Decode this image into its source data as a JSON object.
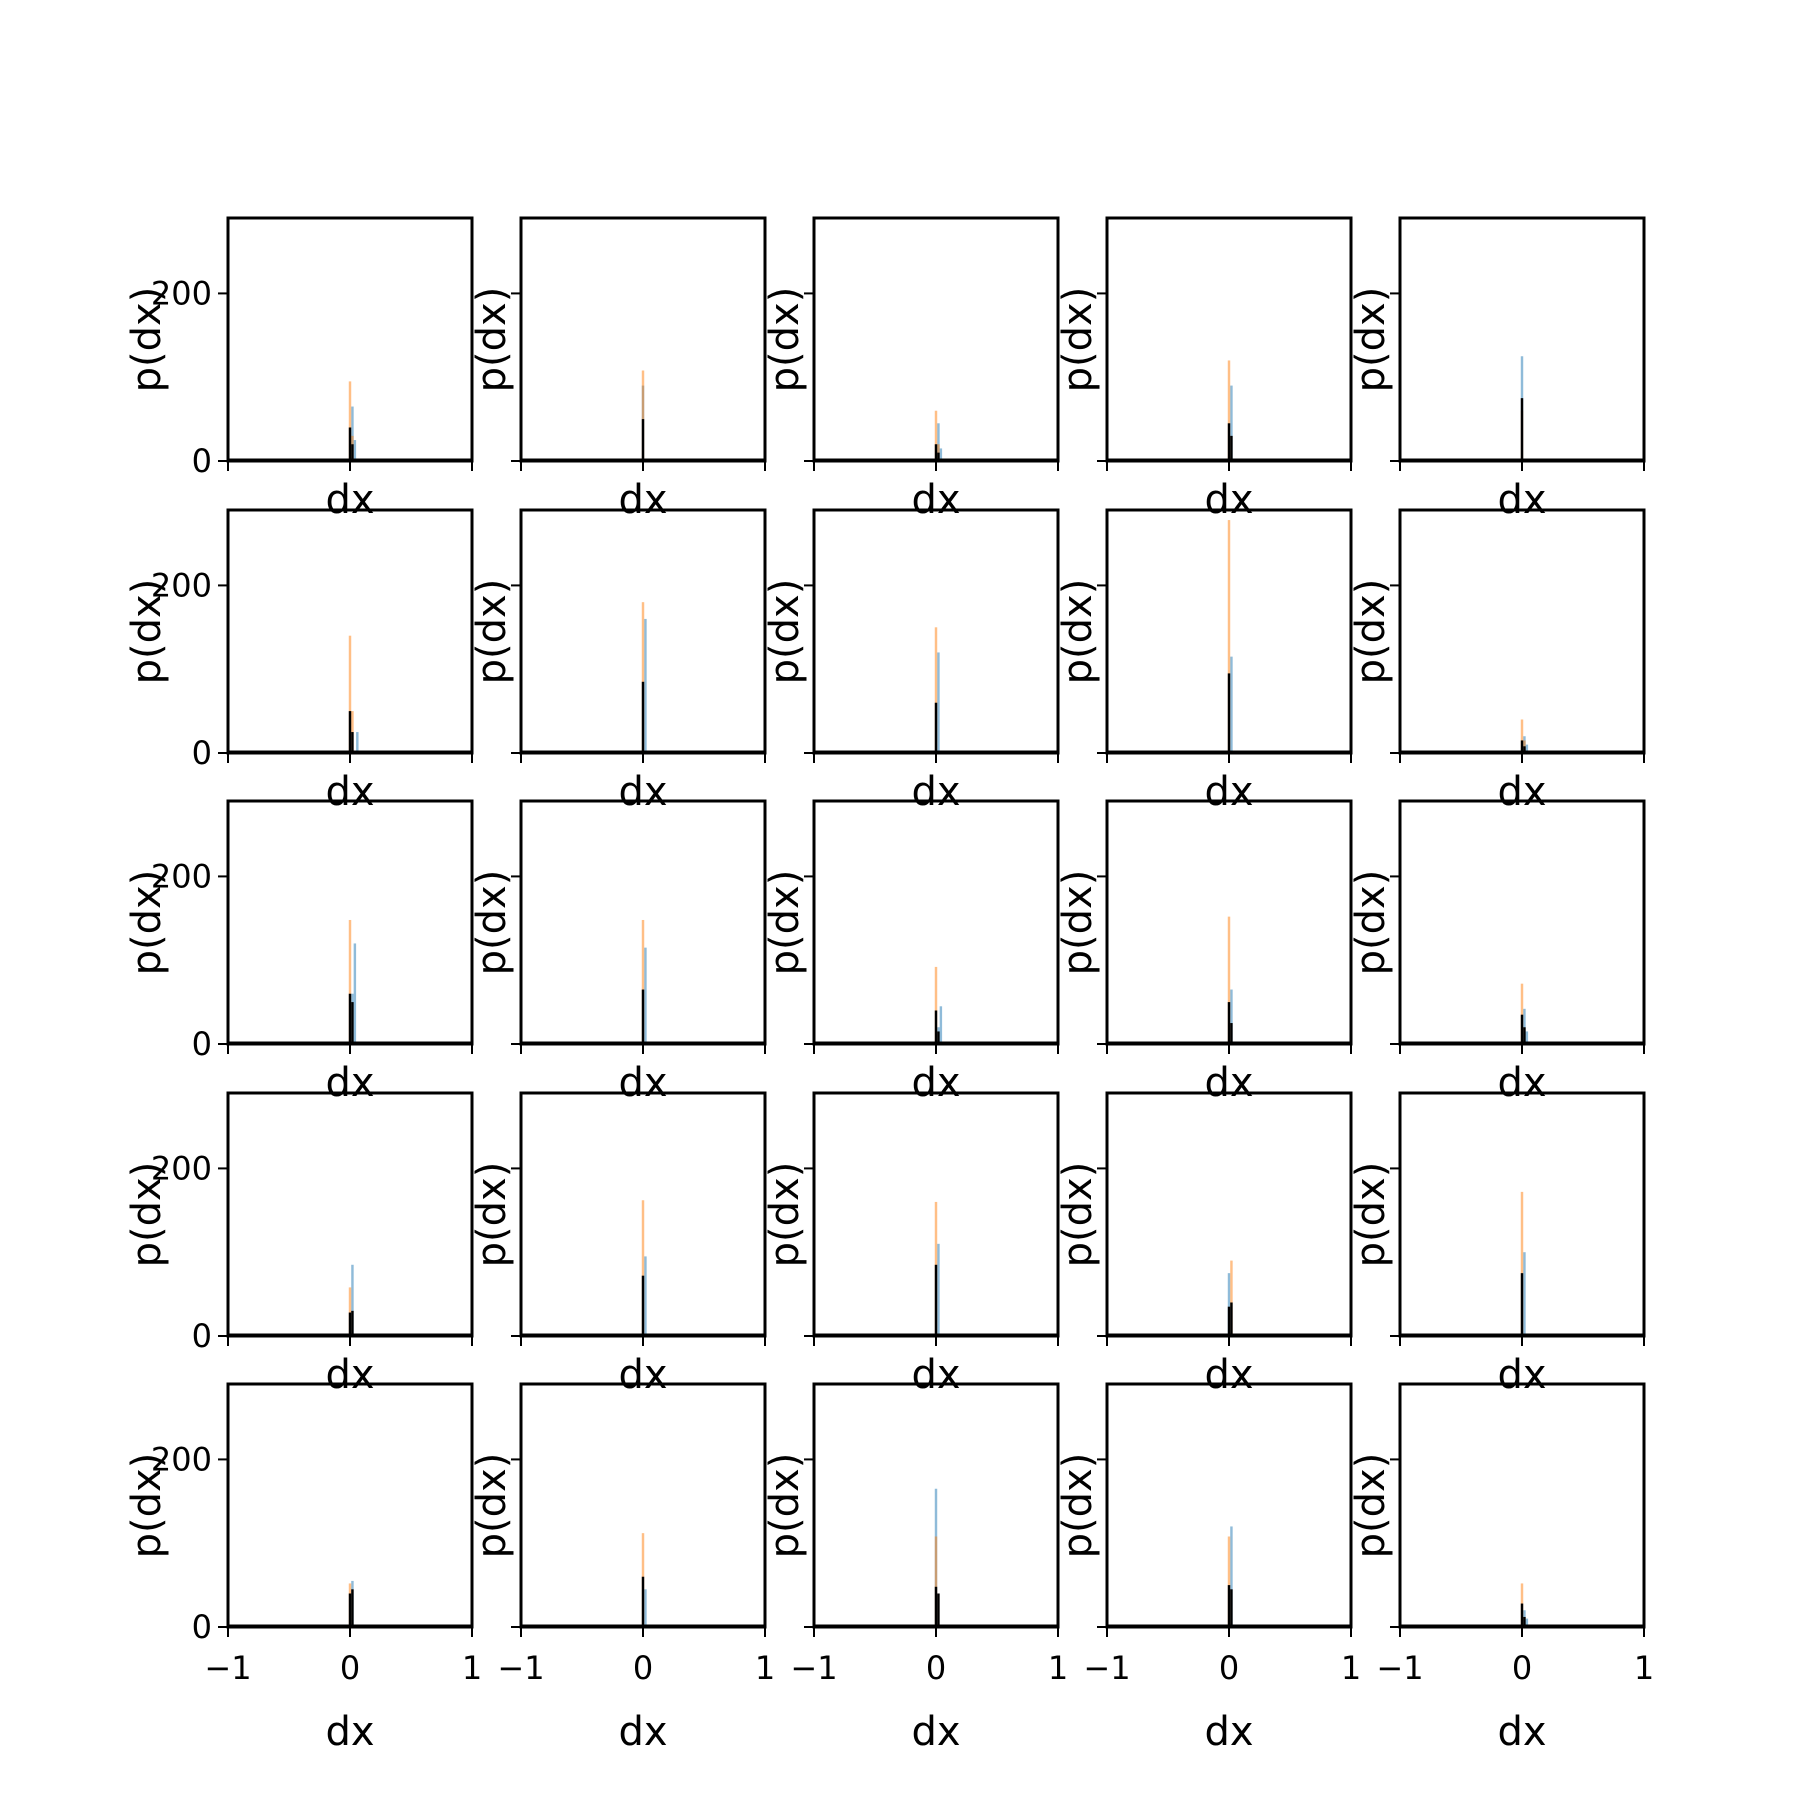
{
  "figure": {
    "background": "#ffffff"
  },
  "colors": {
    "series_blue": "#1f77b4",
    "series_orange": "#ff7f0e",
    "series_black": "#000000",
    "axes": "#000000"
  },
  "chart_data": {
    "type": "histogram-grid",
    "rows": 5,
    "cols": 5,
    "xlabel": "dx",
    "ylabel": "p(dx)",
    "xlim": [
      -1,
      1
    ],
    "ylim": [
      0,
      290
    ],
    "x_ticks": [
      -1,
      0,
      1
    ],
    "x_tick_labels": [
      "−1",
      "0",
      "1"
    ],
    "y_ticks": [
      0,
      200
    ],
    "y_tick_labels": [
      "0",
      "200"
    ],
    "grid": false,
    "bin_width": 0.02,
    "panels": [
      {
        "blue": [
          [
            0.02,
            65
          ],
          [
            0.04,
            25
          ]
        ],
        "orange": [
          [
            0.0,
            95
          ],
          [
            0.02,
            30
          ]
        ],
        "black": [
          [
            0.0,
            40
          ],
          [
            0.02,
            20
          ]
        ]
      },
      {
        "blue": [
          [
            0.0,
            90
          ]
        ],
        "orange": [
          [
            0.0,
            108
          ]
        ],
        "black": [
          [
            0.0,
            50
          ]
        ]
      },
      {
        "blue": [
          [
            0.02,
            45
          ],
          [
            0.04,
            15
          ]
        ],
        "orange": [
          [
            0.0,
            60
          ],
          [
            0.02,
            20
          ]
        ],
        "black": [
          [
            0.0,
            20
          ],
          [
            0.02,
            10
          ]
        ]
      },
      {
        "blue": [
          [
            0.02,
            90
          ]
        ],
        "orange": [
          [
            0.0,
            120
          ]
        ],
        "black": [
          [
            0.0,
            45
          ],
          [
            0.02,
            30
          ]
        ]
      },
      {
        "blue": [
          [
            0.0,
            125
          ]
        ],
        "orange": [
          [
            0.0,
            60
          ]
        ],
        "black": [
          [
            0.0,
            75
          ]
        ]
      },
      {
        "blue": [
          [
            0.06,
            25
          ]
        ],
        "orange": [
          [
            0.0,
            140
          ],
          [
            0.02,
            50
          ]
        ],
        "black": [
          [
            0.0,
            50
          ],
          [
            0.02,
            25
          ]
        ]
      },
      {
        "blue": [
          [
            0.02,
            160
          ]
        ],
        "orange": [
          [
            0.0,
            180
          ]
        ],
        "black": [
          [
            0.0,
            85
          ]
        ]
      },
      {
        "blue": [
          [
            0.02,
            120
          ]
        ],
        "orange": [
          [
            0.0,
            150
          ]
        ],
        "black": [
          [
            0.0,
            60
          ]
        ]
      },
      {
        "blue": [
          [
            0.02,
            115
          ]
        ],
        "orange": [
          [
            0.0,
            278
          ]
        ],
        "black": [
          [
            0.0,
            95
          ]
        ]
      },
      {
        "blue": [
          [
            0.02,
            20
          ],
          [
            0.04,
            10
          ]
        ],
        "orange": [
          [
            0.0,
            40
          ],
          [
            0.02,
            15
          ]
        ],
        "black": [
          [
            0.0,
            15
          ],
          [
            0.02,
            8
          ]
        ]
      },
      {
        "blue": [
          [
            0.04,
            120
          ],
          [
            0.02,
            60
          ]
        ],
        "orange": [
          [
            0.0,
            148
          ]
        ],
        "black": [
          [
            0.0,
            60
          ],
          [
            0.02,
            50
          ]
        ]
      },
      {
        "blue": [
          [
            0.02,
            115
          ]
        ],
        "orange": [
          [
            0.0,
            148
          ]
        ],
        "black": [
          [
            0.0,
            65
          ]
        ]
      },
      {
        "blue": [
          [
            0.04,
            45
          ],
          [
            0.02,
            20
          ]
        ],
        "orange": [
          [
            0.0,
            92
          ]
        ],
        "black": [
          [
            0.0,
            40
          ],
          [
            0.02,
            15
          ]
        ]
      },
      {
        "blue": [
          [
            0.02,
            65
          ]
        ],
        "orange": [
          [
            0.0,
            152
          ]
        ],
        "black": [
          [
            0.0,
            50
          ],
          [
            0.02,
            25
          ]
        ]
      },
      {
        "blue": [
          [
            0.02,
            42
          ],
          [
            0.04,
            15
          ]
        ],
        "orange": [
          [
            0.0,
            72
          ]
        ],
        "black": [
          [
            0.0,
            35
          ],
          [
            0.02,
            20
          ]
        ]
      },
      {
        "blue": [
          [
            0.02,
            85
          ]
        ],
        "orange": [
          [
            0.0,
            58
          ]
        ],
        "black": [
          [
            0.0,
            28
          ],
          [
            0.02,
            30
          ]
        ]
      },
      {
        "blue": [
          [
            0.02,
            95
          ]
        ],
        "orange": [
          [
            0.0,
            162
          ]
        ],
        "black": [
          [
            0.0,
            72
          ]
        ]
      },
      {
        "blue": [
          [
            0.02,
            110
          ]
        ],
        "orange": [
          [
            0.0,
            160
          ]
        ],
        "black": [
          [
            0.0,
            85
          ]
        ]
      },
      {
        "blue": [
          [
            0.0,
            75
          ]
        ],
        "orange": [
          [
            0.02,
            90
          ]
        ],
        "black": [
          [
            0.0,
            35
          ],
          [
            0.02,
            40
          ]
        ]
      },
      {
        "blue": [
          [
            0.02,
            100
          ]
        ],
        "orange": [
          [
            0.0,
            172
          ]
        ],
        "black": [
          [
            0.0,
            75
          ]
        ]
      },
      {
        "blue": [
          [
            0.02,
            55
          ]
        ],
        "orange": [
          [
            0.0,
            52
          ]
        ],
        "black": [
          [
            0.0,
            40
          ],
          [
            0.02,
            45
          ]
        ]
      },
      {
        "blue": [
          [
            0.02,
            45
          ]
        ],
        "orange": [
          [
            0.0,
            112
          ]
        ],
        "black": [
          [
            0.0,
            60
          ]
        ]
      },
      {
        "blue": [
          [
            0.0,
            165
          ]
        ],
        "orange": [
          [
            0.0,
            108
          ]
        ],
        "black": [
          [
            0.0,
            48
          ],
          [
            0.02,
            40
          ]
        ]
      },
      {
        "blue": [
          [
            0.02,
            120
          ]
        ],
        "orange": [
          [
            0.0,
            108
          ]
        ],
        "black": [
          [
            0.0,
            50
          ],
          [
            0.02,
            45
          ]
        ]
      },
      {
        "blue": [
          [
            0.02,
            20
          ],
          [
            0.04,
            10
          ]
        ],
        "orange": [
          [
            0.0,
            52
          ]
        ],
        "black": [
          [
            0.0,
            28
          ],
          [
            0.02,
            12
          ]
        ]
      }
    ]
  }
}
